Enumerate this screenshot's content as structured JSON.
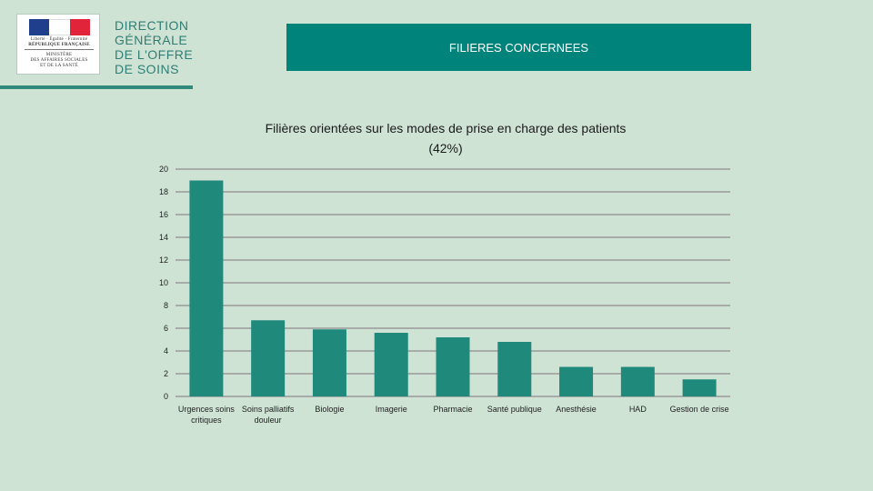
{
  "header": {
    "logo_caption": [
      "Liberté · Égalité · Fraternité",
      "RÉPUBLIQUE FRANÇAISE",
      "MINISTÈRE",
      "DES AFFAIRES SOCIALES",
      "ET DE LA SANTÉ"
    ],
    "org_lines": [
      "DIRECTION",
      "GÉNÉRALE",
      "DE L'OFFRE",
      "DE SOINS"
    ],
    "slide_title": "FILIERES CONCERNEES"
  },
  "colors": {
    "background": "#cfe3d5",
    "accent": "#00837a",
    "bar": "#1f8a7c",
    "grid": "#9a9a9a"
  },
  "chart_data": {
    "type": "bar",
    "title": "Filières orientées sur les modes de prise en charge des patients (42%)",
    "title_lines": [
      "Filières orientées sur les modes de prise en charge des patients",
      "(42%)"
    ],
    "categories": [
      [
        "Urgences soins",
        "critiques"
      ],
      [
        "Soins palliatifs",
        "douleur"
      ],
      [
        "Biologie"
      ],
      [
        "Imagerie"
      ],
      [
        "Pharmacie"
      ],
      [
        "Santé publique"
      ],
      [
        "Anesthésie"
      ],
      [
        "HAD"
      ],
      [
        "Gestion de crise"
      ]
    ],
    "values": [
      19,
      6.7,
      5.9,
      5.6,
      5.2,
      4.8,
      2.6,
      2.6,
      1.5
    ],
    "ylim": [
      0,
      20
    ],
    "yticks": [
      0,
      2,
      4,
      6,
      8,
      10,
      12,
      14,
      16,
      18,
      20
    ],
    "grid": true,
    "xlabel": "",
    "ylabel": ""
  }
}
